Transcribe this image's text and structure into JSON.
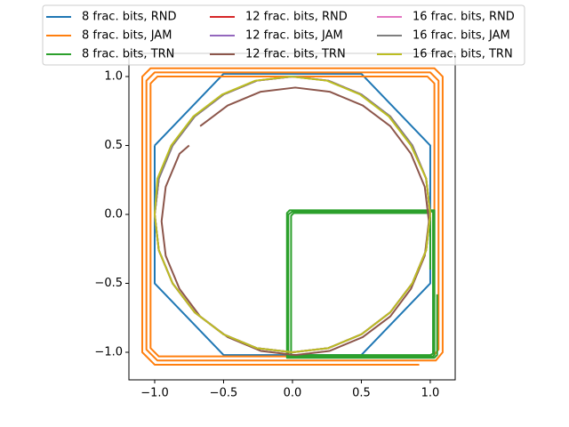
{
  "chart_data": {
    "type": "line",
    "xlim": [
      -1.187,
      1.181
    ],
    "ylim": [
      -1.2,
      1.168
    ],
    "xticks": [
      {
        "value": -1.0,
        "label": "−1.0"
      },
      {
        "value": -0.5,
        "label": "−0.5"
      },
      {
        "value": 0.0,
        "label": "0.0"
      },
      {
        "value": 0.5,
        "label": "0.5"
      },
      {
        "value": 1.0,
        "label": "1.0"
      }
    ],
    "yticks": [
      {
        "value": -1.0,
        "label": "−1.0"
      },
      {
        "value": -0.5,
        "label": "−0.5"
      },
      {
        "value": 0.0,
        "label": "0.0"
      },
      {
        "value": 0.5,
        "label": "0.5"
      },
      {
        "value": 1.0,
        "label": "1.0"
      }
    ],
    "legend": "upper center",
    "series": [
      {
        "name": "8 frac. bits, RND",
        "color": "#1f77b4",
        "x": [
          -1.0,
          -0.5,
          0.5,
          1.0,
          1.0,
          0.5,
          -0.5,
          -1.0,
          -1.0
        ],
        "values": [
          0.5,
          1.02,
          1.02,
          0.5,
          -0.5,
          -1.02,
          -1.02,
          -0.5,
          0.5
        ]
      },
      {
        "name": "8 frac. bits, JAM",
        "color": "#ff7f0e",
        "x": [
          0.92,
          -1.0,
          -1.09,
          -1.09,
          -1.03,
          1.03,
          1.09,
          1.09,
          1.04,
          -0.98,
          -1.06,
          -1.06,
          -1.0,
          1.0,
          1.06,
          1.06,
          1.02,
          -0.97,
          -1.03,
          -1.03,
          -0.98,
          0.98,
          1.03,
          1.03
        ],
        "values": [
          -1.09,
          -1.09,
          -1.0,
          1.0,
          1.06,
          1.06,
          1.0,
          -1.0,
          -1.06,
          -1.06,
          -0.98,
          0.97,
          1.03,
          1.03,
          0.97,
          -0.98,
          -1.03,
          -1.03,
          -0.97,
          0.95,
          1.0,
          1.0,
          0.95,
          -0.6
        ]
      },
      {
        "name": "8 frac. bits, TRN",
        "color": "#2ca02c",
        "x": [
          1.05,
          1.05,
          1.03,
          -0.04,
          -0.04,
          -0.02,
          1.03,
          1.03,
          1.02,
          -0.03,
          -0.03,
          0.0,
          1.02,
          1.02,
          1.0,
          -0.01,
          -0.01,
          0.01,
          1.0,
          1.0
        ],
        "values": [
          -0.58,
          -1.02,
          -1.04,
          -1.04,
          0.01,
          0.03,
          0.03,
          -1.02,
          -1.03,
          -1.03,
          0.0,
          0.02,
          0.02,
          -1.01,
          -1.02,
          -1.02,
          -0.01,
          0.01,
          0.01,
          -0.4
        ]
      },
      {
        "name": "12 frac. bits, RND",
        "color": "#d62728",
        "x": [
          1,
          0.97,
          0.87,
          0.71,
          0.5,
          0.26,
          0,
          -0.26,
          -0.5,
          -0.71,
          -0.87,
          -0.97,
          -1,
          -0.97,
          -0.87,
          -0.71,
          -0.5,
          -0.26,
          0,
          0.26,
          0.5,
          0.71,
          0.87,
          0.97,
          1
        ],
        "values": [
          0,
          0.26,
          0.5,
          0.71,
          0.87,
          0.97,
          1,
          0.97,
          0.87,
          0.71,
          0.5,
          0.26,
          0,
          -0.26,
          -0.5,
          -0.71,
          -0.87,
          -0.97,
          -1,
          -0.97,
          -0.87,
          -0.71,
          -0.5,
          -0.26,
          0
        ]
      },
      {
        "name": "12 frac. bits, JAM",
        "color": "#9467bd",
        "x": [
          1,
          0.97,
          0.87,
          0.71,
          0.5,
          0.26,
          0,
          -0.26,
          -0.5,
          -0.71,
          -0.87,
          -0.97,
          -1,
          -0.97,
          -0.87,
          -0.71,
          -0.5,
          -0.26,
          0,
          0.26,
          0.5,
          0.71,
          0.87,
          0.97,
          1
        ],
        "values": [
          0,
          0.26,
          0.5,
          0.71,
          0.87,
          0.97,
          1,
          0.97,
          0.87,
          0.71,
          0.5,
          0.26,
          0,
          -0.26,
          -0.5,
          -0.71,
          -0.87,
          -0.97,
          -1,
          -0.97,
          -0.87,
          -0.71,
          -0.5,
          -0.26,
          0
        ]
      },
      {
        "name": "12 frac. bits, TRN",
        "color": "#8c564b",
        "x": [
          -0.75,
          -0.82,
          -0.92,
          -0.95,
          -0.92,
          -0.82,
          -0.67,
          -0.47,
          -0.23,
          0.02,
          0.27,
          0.51,
          0.71,
          0.86,
          0.96,
          0.99,
          0.96,
          0.86,
          0.71,
          0.51,
          0.27,
          0.02,
          -0.23,
          -0.47,
          -0.67
        ],
        "values": [
          0.5,
          0.44,
          0.2,
          -0.05,
          -0.3,
          -0.54,
          -0.74,
          -0.89,
          -0.99,
          -1.02,
          -0.99,
          -0.89,
          -0.74,
          -0.54,
          -0.3,
          -0.05,
          0.2,
          0.44,
          0.64,
          0.79,
          0.89,
          0.92,
          0.89,
          0.79,
          0.64
        ]
      },
      {
        "name": "16 frac. bits, RND",
        "color": "#e377c2",
        "x": [
          1,
          0.97,
          0.87,
          0.71,
          0.5,
          0.26,
          0,
          -0.26,
          -0.5,
          -0.71,
          -0.87,
          -0.97,
          -1,
          -0.97,
          -0.87,
          -0.71,
          -0.5,
          -0.26,
          0,
          0.26,
          0.5,
          0.71,
          0.87,
          0.97,
          1
        ],
        "values": [
          0,
          0.26,
          0.5,
          0.71,
          0.87,
          0.97,
          1,
          0.97,
          0.87,
          0.71,
          0.5,
          0.26,
          0,
          -0.26,
          -0.5,
          -0.71,
          -0.87,
          -0.97,
          -1,
          -0.97,
          -0.87,
          -0.71,
          -0.5,
          -0.26,
          0
        ]
      },
      {
        "name": "16 frac. bits, JAM",
        "color": "#7f7f7f",
        "x": [
          1,
          0.97,
          0.87,
          0.71,
          0.5,
          0.26,
          0,
          -0.26,
          -0.5,
          -0.71,
          -0.87,
          -0.97,
          -1,
          -0.97,
          -0.87,
          -0.71,
          -0.5,
          -0.26,
          0,
          0.26,
          0.5,
          0.71,
          0.87,
          0.97,
          1
        ],
        "values": [
          0,
          0.26,
          0.5,
          0.71,
          0.87,
          0.97,
          1,
          0.97,
          0.87,
          0.71,
          0.5,
          0.26,
          0,
          -0.26,
          -0.5,
          -0.71,
          -0.87,
          -0.97,
          -1,
          -0.97,
          -0.87,
          -0.71,
          -0.5,
          -0.26,
          0
        ]
      },
      {
        "name": "16 frac. bits, TRN",
        "color": "#bcbd22",
        "x": [
          1.0,
          0.97,
          0.86,
          0.7,
          0.49,
          0.25,
          -0.01,
          -0.27,
          -0.51,
          -0.72,
          -0.88,
          -0.98,
          -1.0,
          -0.97,
          -0.87,
          -0.71,
          -0.5,
          -0.26,
          0,
          0.26,
          0.5,
          0.71,
          0.87,
          0.97,
          1.0
        ],
        "values": [
          0,
          0.26,
          0.5,
          0.71,
          0.87,
          0.97,
          1.0,
          0.97,
          0.87,
          0.71,
          0.5,
          0.26,
          0,
          -0.26,
          -0.5,
          -0.71,
          -0.87,
          -0.97,
          -1,
          -0.97,
          -0.87,
          -0.71,
          -0.5,
          -0.26,
          0
        ]
      }
    ]
  }
}
